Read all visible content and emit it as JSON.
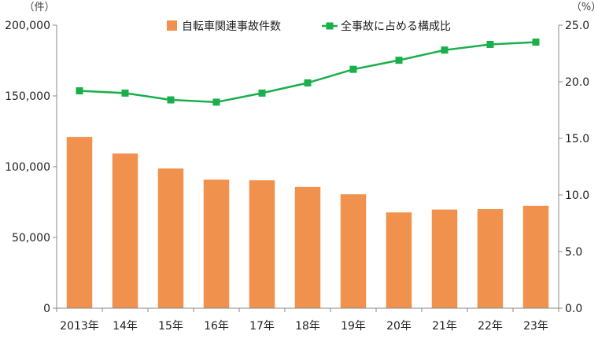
{
  "chart_data": {
    "type": "bar+line",
    "categories": [
      "2013年",
      "14年",
      "15年",
      "16年",
      "17年",
      "18年",
      "19年",
      "20年",
      "21年",
      "22年",
      "23年"
    ],
    "series": [
      {
        "name": "自転車関連事故件数",
        "type": "bar",
        "axis": "left",
        "color": "#f0924e",
        "values": [
          121040,
          109269,
          98700,
          90837,
          90407,
          85641,
          80473,
          67673,
          69694,
          69985,
          72339
        ]
      },
      {
        "name": "全事故に占める構成比",
        "type": "line",
        "axis": "right",
        "color": "#1aaf4b",
        "values": [
          19.2,
          19.0,
          18.4,
          18.2,
          19.0,
          19.9,
          21.1,
          21.9,
          22.8,
          23.3,
          23.5
        ]
      }
    ],
    "y_left": {
      "unit": "（件）",
      "ylim": [
        0,
        200000
      ],
      "ticks": [
        "0",
        "50,000",
        "100,000",
        "150,000",
        "200,000"
      ],
      "tick_values": [
        0,
        50000,
        100000,
        150000,
        200000
      ]
    },
    "y_right": {
      "unit": "（%）",
      "ylim": [
        0,
        25
      ],
      "ticks": [
        "0.0",
        "5.0",
        "10.0",
        "15.0",
        "20.0",
        "25.0"
      ],
      "tick_values": [
        0,
        5,
        10,
        15,
        20,
        25
      ]
    },
    "legend_position": "top-center",
    "grid": false
  }
}
